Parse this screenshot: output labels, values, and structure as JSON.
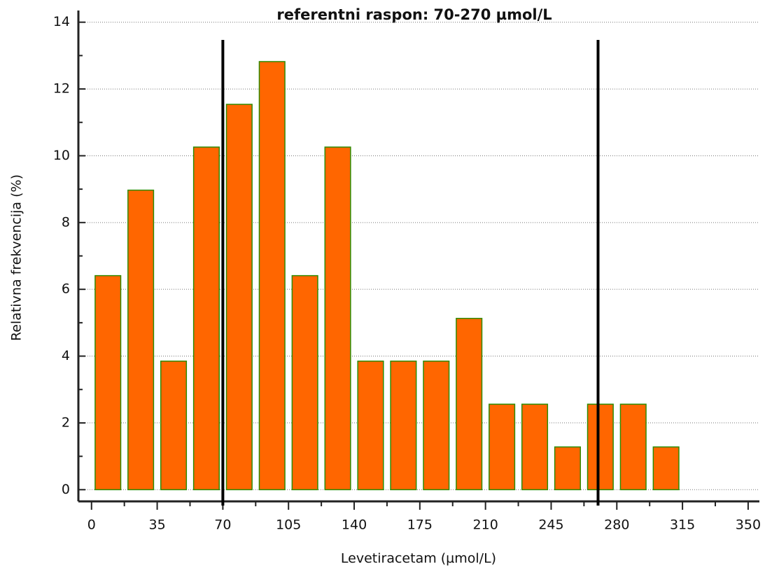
{
  "chart_data": {
    "type": "histogram",
    "title": "referentni raspon: 70-270 µmol/L",
    "x_label": "Levetiracetam (µmol/L)",
    "y_label": "Relativna frekvencija (%)",
    "bins": [
      0,
      17.5,
      35,
      52.5,
      70,
      87.5,
      105,
      122.5,
      140,
      157.5,
      175,
      192.5,
      210,
      227.5,
      245,
      262.5,
      280,
      297.5,
      315
    ],
    "values": [
      6.41,
      8.97,
      3.85,
      10.26,
      11.54,
      12.82,
      6.41,
      10.26,
      3.85,
      3.85,
      3.85,
      5.13,
      2.56,
      2.56,
      1.28,
      2.56,
      2.56,
      1.28
    ],
    "color": "#ff6600",
    "edge_color": "#2e8b00",
    "reference_lines": [
      70,
      270
    ],
    "xlim": [
      -7,
      356
    ],
    "ylim": [
      -0.35,
      14.35
    ],
    "xticks": [
      0,
      35,
      70,
      105,
      140,
      175,
      210,
      245,
      280,
      315,
      350
    ],
    "yticks": [
      0,
      2,
      4,
      6,
      8,
      10,
      12,
      14
    ],
    "grid": true
  }
}
